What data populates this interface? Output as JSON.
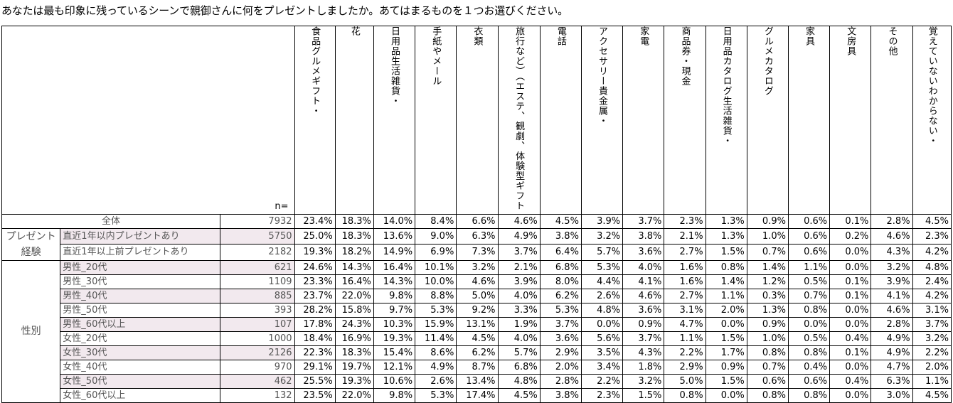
{
  "title": "あなたは最も印象に残っているシーンで親御さんに何をプレゼントしましたか。あてはまるものを１つお選びください。",
  "n_label": "n=",
  "columns": [
    "グルメギフト・食品",
    "花",
    "生活雑貨・日用品",
    "手紙やメール",
    "衣類",
    "体験型ギフト（エステ、観劇、旅行など）",
    "電話",
    "貴金属・アクセサリー",
    "家電",
    "商品券・現金",
    "生活雑貨・日用品カタログ",
    "グルメカタログ",
    "家具",
    "文房具",
    "その他",
    "わからない・覚えていない"
  ],
  "column_lines": [
    [
      "食品",
      "グルメギフト・"
    ],
    [
      "花"
    ],
    [
      "日用品",
      "生活雑貨・"
    ],
    [
      "手紙やメール"
    ],
    [
      "衣類"
    ],
    [
      "旅行など）",
      "（エステ、観劇、",
      "体験型ギフト"
    ],
    [
      "電話"
    ],
    [
      "アクセサリー",
      "貴金属・"
    ],
    [
      "家電"
    ],
    [
      "商品券・現金"
    ],
    [
      "日用品カタログ",
      "生活雑貨・"
    ],
    [
      "グルメカタログ"
    ],
    [
      "家具"
    ],
    [
      "文房具"
    ],
    [
      "その他"
    ],
    [
      "覚えていない",
      "わからない・"
    ]
  ],
  "total": {
    "label": "全体",
    "n": "7932",
    "values": [
      "23.4%",
      "18.3%",
      "14.0%",
      "8.4%",
      "6.6%",
      "4.6%",
      "4.5%",
      "3.9%",
      "3.7%",
      "2.3%",
      "1.3%",
      "0.9%",
      "0.6%",
      "0.1%",
      "2.8%",
      "4.5%"
    ]
  },
  "groups": [
    {
      "name": "プレゼント経験",
      "rows": [
        {
          "label": "直近1年以内プレゼントあり",
          "n": "5750",
          "values": [
            "25.0%",
            "18.3%",
            "13.6%",
            "9.0%",
            "6.3%",
            "4.9%",
            "3.8%",
            "3.2%",
            "3.8%",
            "2.1%",
            "1.3%",
            "1.0%",
            "0.6%",
            "0.2%",
            "4.6%",
            "2.3%"
          ]
        },
        {
          "label": "直近1年以上前プレゼントあり",
          "n": "2182",
          "values": [
            "19.3%",
            "18.2%",
            "14.9%",
            "6.9%",
            "7.3%",
            "3.7%",
            "6.4%",
            "5.7%",
            "3.6%",
            "2.7%",
            "1.5%",
            "0.7%",
            "0.6%",
            "0.0%",
            "4.3%",
            "4.2%"
          ]
        }
      ]
    },
    {
      "name": "性別",
      "rows": [
        {
          "label": "男性_20代",
          "n": "621",
          "values": [
            "24.6%",
            "14.3%",
            "16.4%",
            "10.1%",
            "3.2%",
            "2.1%",
            "6.8%",
            "5.3%",
            "4.0%",
            "1.6%",
            "0.8%",
            "1.4%",
            "1.1%",
            "0.0%",
            "3.2%",
            "4.8%"
          ]
        },
        {
          "label": "男性_30代",
          "n": "1109",
          "values": [
            "23.3%",
            "16.4%",
            "14.3%",
            "10.0%",
            "4.6%",
            "3.9%",
            "8.0%",
            "4.4%",
            "4.1%",
            "1.6%",
            "1.4%",
            "1.2%",
            "0.5%",
            "0.1%",
            "3.9%",
            "2.4%"
          ]
        },
        {
          "label": "男性_40代",
          "n": "885",
          "values": [
            "23.7%",
            "22.0%",
            "9.8%",
            "8.8%",
            "5.0%",
            "4.0%",
            "6.2%",
            "2.6%",
            "4.6%",
            "2.7%",
            "1.1%",
            "0.3%",
            "0.7%",
            "0.1%",
            "4.1%",
            "4.2%"
          ]
        },
        {
          "label": "男性_50代",
          "n": "393",
          "values": [
            "28.2%",
            "15.8%",
            "9.7%",
            "5.3%",
            "9.2%",
            "3.3%",
            "5.3%",
            "4.8%",
            "3.6%",
            "3.1%",
            "2.0%",
            "1.3%",
            "0.8%",
            "0.0%",
            "4.6%",
            "3.1%"
          ]
        },
        {
          "label": "男性_60代以上",
          "n": "107",
          "values": [
            "17.8%",
            "24.3%",
            "10.3%",
            "15.9%",
            "13.1%",
            "1.9%",
            "3.7%",
            "0.0%",
            "0.9%",
            "4.7%",
            "0.0%",
            "0.9%",
            "0.0%",
            "0.0%",
            "2.8%",
            "3.7%"
          ]
        },
        {
          "label": "女性_20代",
          "n": "1000",
          "values": [
            "18.4%",
            "16.9%",
            "19.3%",
            "11.4%",
            "4.5%",
            "4.0%",
            "3.6%",
            "5.6%",
            "3.7%",
            "1.1%",
            "1.5%",
            "1.0%",
            "0.5%",
            "0.4%",
            "4.9%",
            "3.2%"
          ]
        },
        {
          "label": "女性_30代",
          "n": "2126",
          "values": [
            "22.3%",
            "18.3%",
            "15.4%",
            "8.6%",
            "6.2%",
            "5.7%",
            "2.9%",
            "3.5%",
            "4.3%",
            "2.2%",
            "1.7%",
            "0.8%",
            "0.8%",
            "0.1%",
            "4.9%",
            "2.2%"
          ]
        },
        {
          "label": "女性_40代",
          "n": "970",
          "values": [
            "29.1%",
            "19.7%",
            "12.1%",
            "4.9%",
            "8.7%",
            "6.8%",
            "2.0%",
            "3.4%",
            "1.8%",
            "2.9%",
            "0.9%",
            "0.7%",
            "0.4%",
            "0.0%",
            "4.7%",
            "2.0%"
          ]
        },
        {
          "label": "女性_50代",
          "n": "462",
          "values": [
            "25.5%",
            "19.3%",
            "10.6%",
            "2.6%",
            "13.4%",
            "4.8%",
            "2.8%",
            "2.2%",
            "3.2%",
            "5.0%",
            "1.5%",
            "0.6%",
            "0.6%",
            "0.4%",
            "6.3%",
            "1.1%"
          ]
        },
        {
          "label": "女性_60代以上",
          "n": "132",
          "values": [
            "23.5%",
            "22.0%",
            "9.8%",
            "5.3%",
            "17.4%",
            "4.5%",
            "3.8%",
            "2.3%",
            "1.5%",
            "0.8%",
            "0.0%",
            "0.8%",
            "0.8%",
            "0.0%",
            "3.0%",
            "4.5%"
          ]
        }
      ]
    }
  ],
  "colors": {
    "label_shade": "#f2e9ee",
    "label_text": "#555555"
  }
}
